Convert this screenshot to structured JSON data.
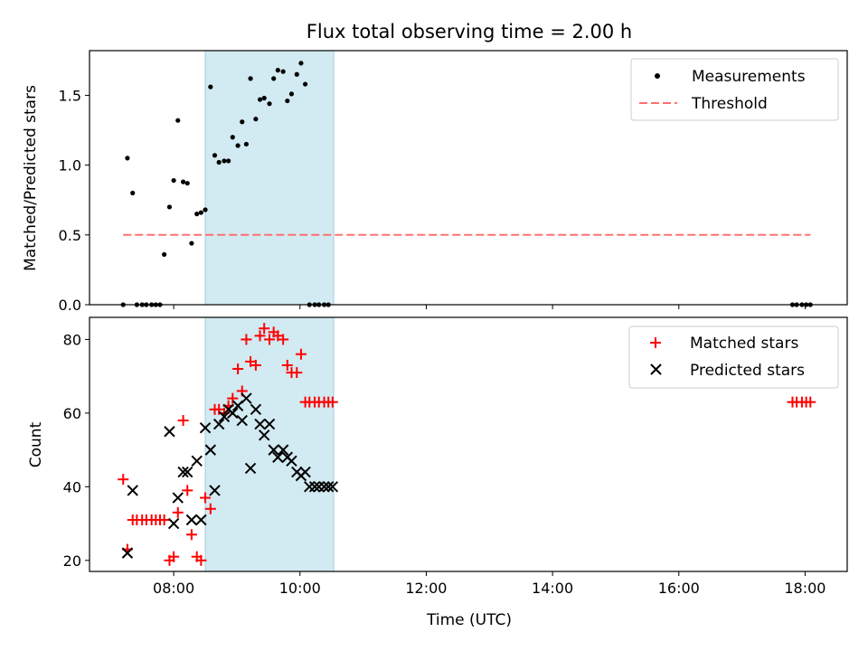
{
  "chart_data": [
    {
      "type": "scatter",
      "title": "Flux total observing time = 2.00 h",
      "xlabel": "",
      "ylabel": "Matched/Predicted stars",
      "xlim": [
        "06:40",
        "18:40"
      ],
      "ylim": [
        0,
        1.82
      ],
      "yticks": [
        0.0,
        0.5,
        1.0,
        1.5
      ],
      "ytick_labels": [
        "0.0",
        "0.5",
        "1.0",
        "1.5"
      ],
      "shaded_span": [
        "08:30",
        "10:32"
      ],
      "shade_color": "#add8e6",
      "legend_position": "top-right",
      "series": [
        {
          "name": "Measurements",
          "marker": "dot",
          "color": "#000000",
          "x": [
            "07:12",
            "07:16",
            "07:21",
            "07:25",
            "07:30",
            "07:34",
            "07:39",
            "07:43",
            "07:47",
            "07:51",
            "07:56",
            "08:00",
            "08:04",
            "08:09",
            "08:13",
            "08:17",
            "08:22",
            "08:26",
            "08:30",
            "08:35",
            "08:39",
            "08:43",
            "08:48",
            "08:52",
            "08:56",
            "09:01",
            "09:05",
            "09:09",
            "09:13",
            "09:18",
            "09:22",
            "09:26",
            "09:31",
            "09:35",
            "09:39",
            "09:44",
            "09:48",
            "09:52",
            "09:57",
            "10:01",
            "10:05",
            "10:09",
            "10:14",
            "10:18",
            "10:23",
            "10:27",
            "17:48",
            "17:52",
            "17:57",
            "18:01",
            "18:05"
          ],
          "y": [
            0.0,
            1.05,
            0.8,
            0.0,
            0.0,
            0.0,
            0.0,
            0.0,
            0.0,
            0.36,
            0.7,
            0.89,
            1.32,
            0.88,
            0.87,
            0.44,
            0.65,
            0.66,
            0.68,
            1.56,
            1.07,
            1.02,
            1.03,
            1.03,
            1.2,
            1.14,
            1.31,
            1.15,
            1.62,
            1.33,
            1.47,
            1.48,
            1.44,
            1.62,
            1.68,
            1.67,
            1.46,
            1.51,
            1.65,
            1.73,
            1.58,
            0.0,
            0.0,
            0.0,
            0.0,
            0.0,
            0.0,
            0.0,
            0.0,
            0.0,
            0.0
          ]
        },
        {
          "name": "Threshold",
          "line": "dashed",
          "color": "#ff7070",
          "x": [
            "07:12",
            "18:05"
          ],
          "y": [
            0.5,
            0.5
          ]
        }
      ]
    },
    {
      "type": "scatter",
      "title": "",
      "xlabel": "Time (UTC)",
      "ylabel": "Count",
      "xlim": [
        "06:40",
        "18:40"
      ],
      "ylim": [
        17,
        86
      ],
      "yticks": [
        20,
        40,
        60,
        80
      ],
      "ytick_labels": [
        "20",
        "40",
        "60",
        "80"
      ],
      "xticks": [
        "08:00",
        "10:00",
        "12:00",
        "14:00",
        "16:00",
        "18:00"
      ],
      "xtick_labels": [
        "08:00",
        "10:00",
        "12:00",
        "14:00",
        "16:00",
        "18:00"
      ],
      "shaded_span": [
        "08:30",
        "10:32"
      ],
      "shade_color": "#add8e6",
      "legend_position": "top-right",
      "series": [
        {
          "name": "Matched stars",
          "marker": "plus",
          "color": "#ff0000",
          "x": [
            "07:12",
            "07:16",
            "07:21",
            "07:25",
            "07:30",
            "07:34",
            "07:39",
            "07:43",
            "07:47",
            "07:51",
            "07:56",
            "08:00",
            "08:04",
            "08:09",
            "08:13",
            "08:17",
            "08:22",
            "08:26",
            "08:30",
            "08:35",
            "08:39",
            "08:43",
            "08:48",
            "08:52",
            "08:56",
            "09:01",
            "09:05",
            "09:09",
            "09:13",
            "09:18",
            "09:22",
            "09:26",
            "09:31",
            "09:35",
            "09:39",
            "09:44",
            "09:48",
            "09:52",
            "09:57",
            "10:01",
            "10:05",
            "10:09",
            "10:14",
            "10:18",
            "10:23",
            "10:27",
            "10:31",
            "17:48",
            "17:52",
            "17:57",
            "18:01",
            "18:05"
          ],
          "y": [
            42,
            23,
            31,
            31,
            31,
            31,
            31,
            31,
            31,
            31,
            20,
            21,
            33,
            58,
            39,
            27,
            21,
            20,
            37,
            34,
            61,
            61,
            60,
            62,
            64,
            72,
            66,
            80,
            74,
            73,
            81,
            83,
            80,
            82,
            81,
            80,
            73,
            71,
            71,
            76,
            63,
            63,
            63,
            63,
            63,
            63,
            63,
            63,
            63,
            63,
            63,
            63
          ]
        },
        {
          "name": "Predicted stars",
          "marker": "x",
          "color": "#000000",
          "x": [
            "07:16",
            "07:21",
            "07:56",
            "08:00",
            "08:04",
            "08:09",
            "08:13",
            "08:17",
            "08:22",
            "08:26",
            "08:30",
            "08:35",
            "08:39",
            "08:43",
            "08:48",
            "08:52",
            "08:56",
            "09:01",
            "09:05",
            "09:09",
            "09:13",
            "09:18",
            "09:22",
            "09:26",
            "09:31",
            "09:35",
            "09:39",
            "09:44",
            "09:48",
            "09:52",
            "09:57",
            "10:01",
            "10:05",
            "10:09",
            "10:14",
            "10:18",
            "10:23",
            "10:27",
            "10:31"
          ],
          "y": [
            22,
            39,
            55,
            30,
            37,
            44,
            44,
            31,
            47,
            31,
            56,
            50,
            39,
            57,
            59,
            61,
            60,
            62,
            58,
            64,
            45,
            61,
            57,
            54,
            57,
            50,
            48,
            50,
            48,
            47,
            44,
            43,
            44,
            40,
            40,
            40,
            40,
            40,
            40
          ]
        }
      ]
    }
  ]
}
